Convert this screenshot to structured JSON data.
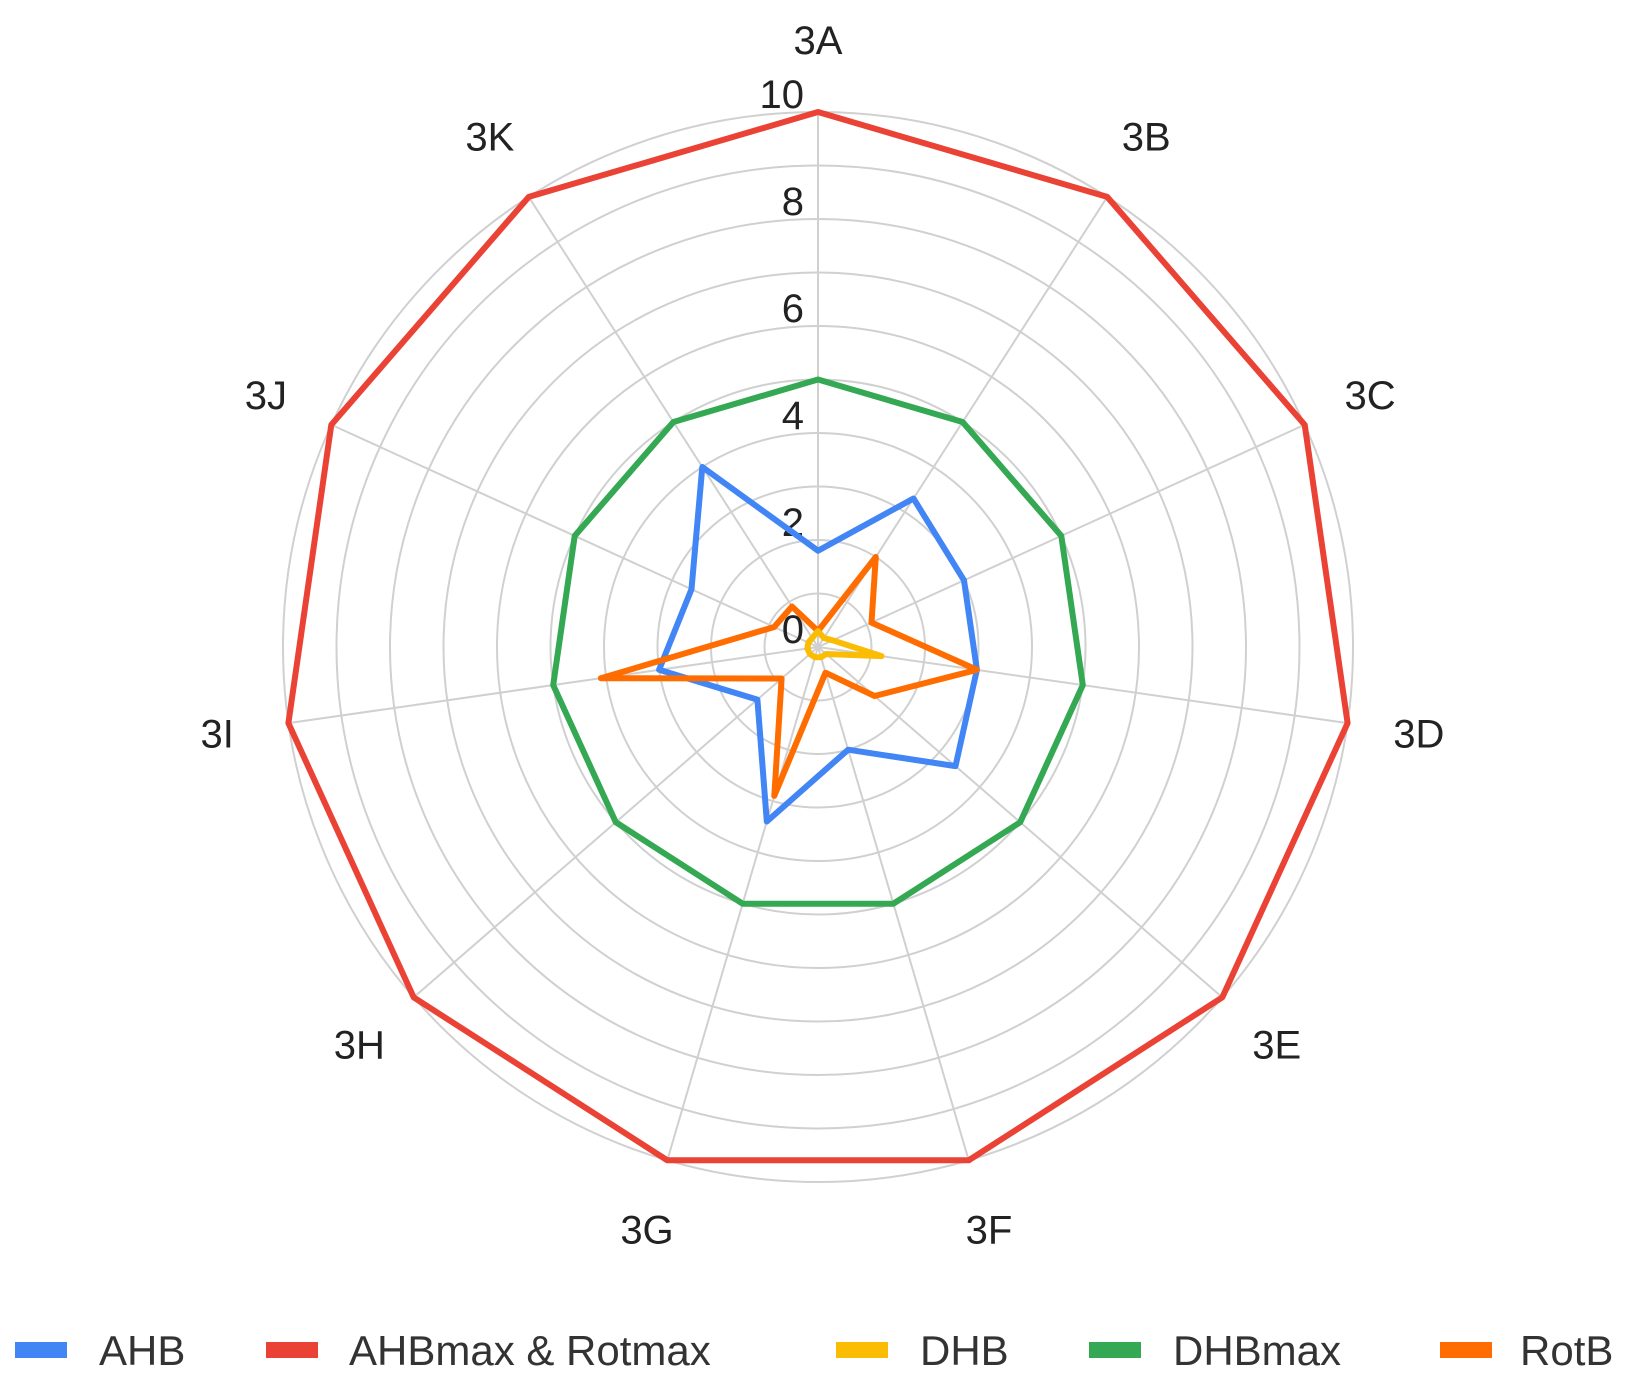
{
  "chart_data": {
    "type": "radar",
    "title": "",
    "categories": [
      "3A",
      "3B",
      "3C",
      "3D",
      "3E",
      "3F",
      "3G",
      "3H",
      "3I",
      "3J",
      "3K"
    ],
    "radial_ticks": [
      0,
      2,
      4,
      6,
      8,
      10
    ],
    "rlim": [
      0,
      10
    ],
    "grid": true,
    "legend_position": "bottom",
    "series": [
      {
        "name": "AHB",
        "color": "#4285F4",
        "values": [
          1.8,
          3.3,
          3.0,
          3.0,
          3.4,
          2.0,
          3.4,
          1.5,
          3.0,
          2.6,
          4.0
        ]
      },
      {
        "name": "AHBmax & Rotmax",
        "color": "#EA4335",
        "values": [
          10,
          10,
          10,
          10,
          10,
          10,
          10,
          10,
          10,
          10,
          10
        ]
      },
      {
        "name": "DHB",
        "color": "#FBBC04",
        "values": [
          0.3,
          0.2,
          0.3,
          1.2,
          0.2,
          0.2,
          0.2,
          0.2,
          0.2,
          0.2,
          0.2
        ]
      },
      {
        "name": "DHBmax",
        "color": "#34A853",
        "values": [
          5.0,
          5.0,
          5.0,
          5.0,
          5.0,
          5.0,
          5.0,
          5.0,
          5.0,
          5.0,
          5.0
        ]
      },
      {
        "name": "RotB",
        "color": "#FF6D01",
        "values": [
          0.3,
          2.0,
          1.1,
          3.0,
          1.4,
          0.5,
          2.9,
          0.9,
          4.1,
          0.9,
          0.9
        ]
      }
    ]
  }
}
